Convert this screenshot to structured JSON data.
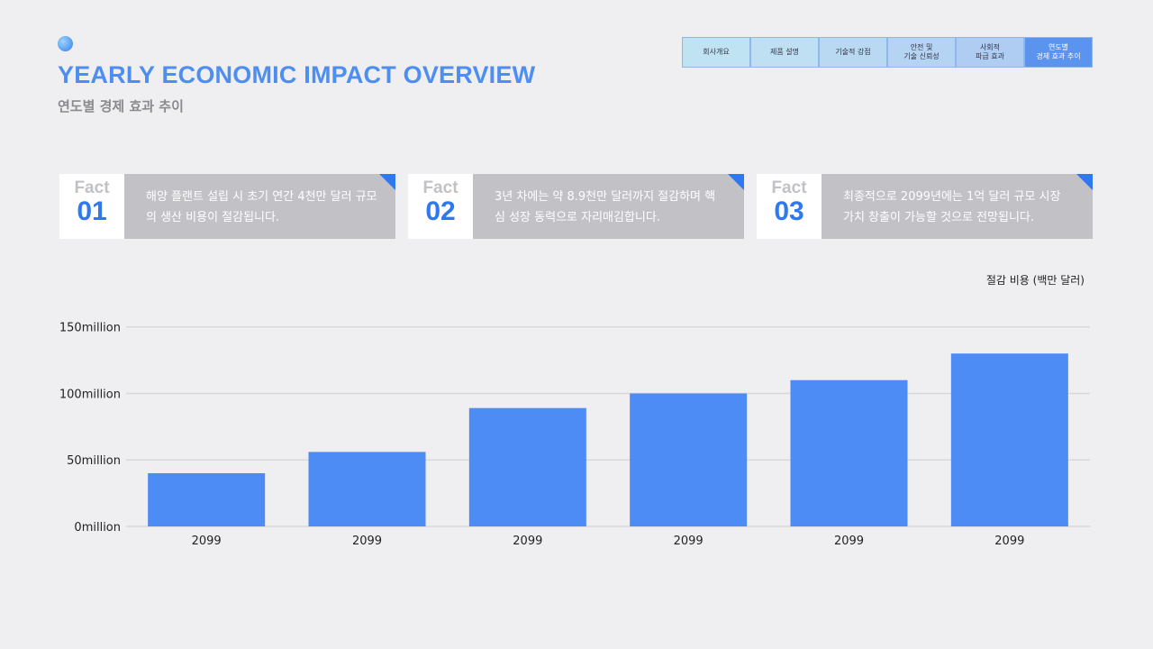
{
  "header": {
    "title": "YEARLY ECONOMIC IMPACT OVERVIEW",
    "subtitle": "연도별 경제 효과 추이"
  },
  "nav": {
    "tabs": [
      {
        "label": "회사개요"
      },
      {
        "label": "제품 설명"
      },
      {
        "label": "기술적 강점"
      },
      {
        "label": "안전 및\n기술 신뢰성"
      },
      {
        "label": "사회적\n파급 효과"
      },
      {
        "label": "연도별\n경제 효과 추이",
        "active": true
      }
    ]
  },
  "facts": [
    {
      "label": "Fact",
      "number": "01",
      "text": "해양 플랜트 설립 시 초기 연간 4천만 달러 규모의 생산 비용이 절감됩니다."
    },
    {
      "label": "Fact",
      "number": "02",
      "text": "3년 차에는 약 8.9천만 달러까지 절감하며 핵심 성장 동력으로 자리매김합니다."
    },
    {
      "label": "Fact",
      "number": "03",
      "text": "최종적으로 2099년에는 1억 달러 규모 시장 가치 창출이 가능할 것으로 전망됩니다."
    }
  ],
  "chart_data": {
    "type": "bar",
    "ylabel": "절감 비용 (백만 달러)",
    "categories": [
      "2099",
      "2099",
      "2099",
      "2099",
      "2099",
      "2099"
    ],
    "values": [
      40,
      56,
      89,
      100,
      110,
      130
    ],
    "ylim": [
      0,
      150
    ],
    "yticks": [
      0,
      50,
      100,
      150
    ],
    "ytick_labels": [
      "0million",
      "50million",
      "100million",
      "150million"
    ],
    "grid": true,
    "color": "#4e8cf5"
  }
}
